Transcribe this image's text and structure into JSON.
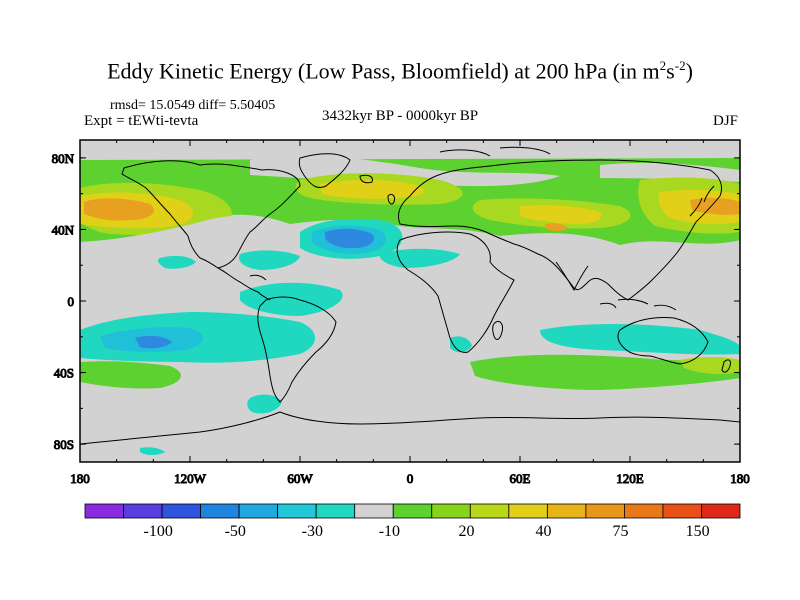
{
  "title": {
    "main": "Eddy Kinetic Energy (Low Pass, Bloomfield) at 200 hPa (in m",
    "sup1": "2",
    "mid": "s",
    "sup2": "-2",
    "end": ")"
  },
  "stats": "rmsd= 15.0549 diff= 5.50405",
  "experiment": "Expt = tEWti-tevta",
  "period": "3432kyr BP - 0000kyr BP",
  "season": "DJF",
  "lat_ticks": [
    "80N",
    "40N",
    "0",
    "40S",
    "80S"
  ],
  "lon_ticks": [
    "180",
    "120W",
    "60W",
    "0",
    "60E",
    "120E",
    "180"
  ],
  "colorbar": {
    "labels": [
      "-100",
      "-50",
      "-30",
      "-10",
      "20",
      "40",
      "75",
      "150"
    ],
    "colors": [
      "#8a2be2",
      "#5a3de0",
      "#2f55e0",
      "#1f84dd",
      "#20a8e0",
      "#20c8d8",
      "#20d8c0",
      "#d2d2d2",
      "#5cd130",
      "#88d418",
      "#b8d818",
      "#e0d018",
      "#e8b418",
      "#e89818",
      "#e87818",
      "#e85018",
      "#e02818"
    ]
  },
  "map": {
    "background_color": "#d2d2d2",
    "region_colors": {
      "green": "#5cd130",
      "yellow_green": "#a8d820",
      "yellow": "#e0d018",
      "orange": "#e8a020",
      "cyan": "#20d8c0",
      "teal": "#20c0d8",
      "blue": "#2f88e0"
    }
  }
}
